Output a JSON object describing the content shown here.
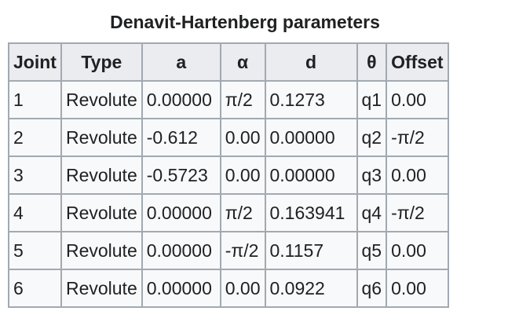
{
  "table": {
    "caption": "Denavit-Hartenberg parameters",
    "headers": [
      "Joint",
      "Type",
      "a",
      "α",
      "d",
      "θ",
      "Offset"
    ],
    "rows": [
      [
        "1",
        "Revolute",
        "0.00000",
        "π/2",
        "0.1273",
        "q1",
        "0.00"
      ],
      [
        "2",
        "Revolute",
        "-0.612",
        "0.00",
        "0.00000",
        "q2",
        "-π/2"
      ],
      [
        "3",
        "Revolute",
        "-0.5723",
        "0.00",
        "0.00000",
        "q3",
        "0.00"
      ],
      [
        "4",
        "Revolute",
        "0.00000",
        "π/2",
        "0.163941",
        "q4",
        "-π/2"
      ],
      [
        "5",
        "Revolute",
        "0.00000",
        "-π/2",
        "0.1157",
        "q5",
        "0.00"
      ],
      [
        "6",
        "Revolute",
        "0.00000",
        "0.00",
        "0.0922",
        "q6",
        "0.00"
      ]
    ]
  }
}
